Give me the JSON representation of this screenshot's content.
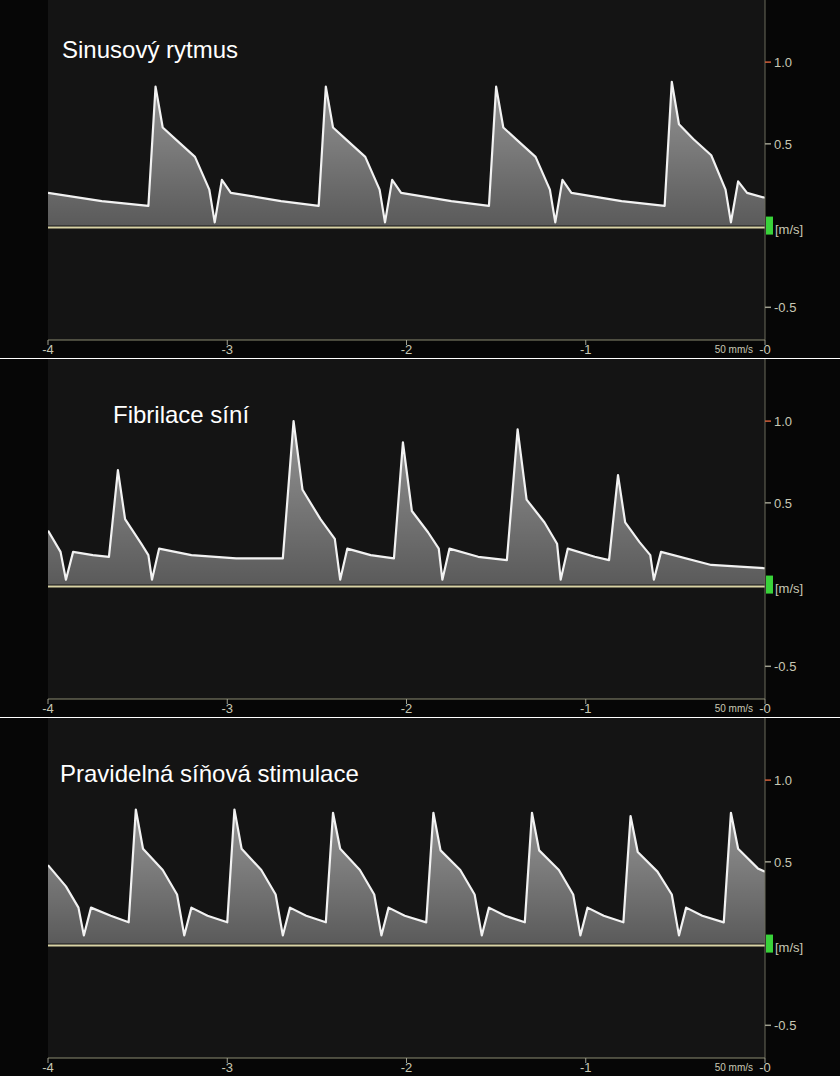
{
  "chart_data": [
    {
      "type": "area",
      "title": "Sinusový rytmus",
      "y_label": "[m/s]",
      "annotation": "50 mm/s",
      "color": "#f2f2f2",
      "xlim": [
        -4,
        0
      ],
      "xticks": [
        -4,
        -3,
        -2,
        -1,
        {
          "value": 0,
          "label": "-0"
        }
      ],
      "ylim": [
        -0.7,
        1.38
      ],
      "yticks": [
        {
          "value": -0.5,
          "label": "-0.5"
        },
        {
          "value": 0.5,
          "label": "0.5"
        },
        {
          "value": 1,
          "label": "1.0"
        }
      ],
      "x": [
        -4,
        -3.7,
        -3.44,
        -3.4,
        -3.36,
        -3.28,
        -3.18,
        -3.1,
        -3.07,
        -3.03,
        -2.98,
        -2.7,
        -2.49,
        -2.45,
        -2.41,
        -2.33,
        -2.23,
        -2.15,
        -2.12,
        -2.08,
        -2.03,
        -1.75,
        -1.54,
        -1.5,
        -1.46,
        -1.38,
        -1.28,
        -1.2,
        -1.17,
        -1.13,
        -1.08,
        -0.8,
        -0.56,
        -0.52,
        -0.48,
        -0.4,
        -0.3,
        -0.22,
        -0.19,
        -0.15,
        -0.1,
        0
      ],
      "values": [
        0.2,
        0.15,
        0.12,
        0.85,
        0.6,
        0.52,
        0.42,
        0.22,
        0.02,
        0.28,
        0.2,
        0.15,
        0.12,
        0.85,
        0.6,
        0.52,
        0.42,
        0.22,
        0.02,
        0.28,
        0.2,
        0.15,
        0.12,
        0.85,
        0.6,
        0.52,
        0.42,
        0.22,
        0.02,
        0.28,
        0.2,
        0.15,
        0.12,
        0.88,
        0.62,
        0.53,
        0.43,
        0.22,
        0.02,
        0.27,
        0.2,
        0.17
      ]
    },
    {
      "type": "area",
      "title": "Fibrilace síní",
      "y_label": "[m/s]",
      "annotation": "50 mm/s",
      "color": "#f2f2f2",
      "xlim": [
        -4,
        0
      ],
      "xticks": [
        -4,
        -3,
        -2,
        -1,
        {
          "value": 0,
          "label": "-0"
        }
      ],
      "ylim": [
        -0.7,
        1.38
      ],
      "yticks": [
        {
          "value": -0.5,
          "label": "-0.5"
        },
        {
          "value": 0.5,
          "label": "0.5"
        },
        {
          "value": 1,
          "label": "1.0"
        }
      ],
      "x": [
        -4,
        -3.93,
        -3.9,
        -3.86,
        -3.75,
        -3.66,
        -3.61,
        -3.57,
        -3.48,
        -3.44,
        -3.42,
        -3.38,
        -3.2,
        -2.95,
        -2.69,
        -2.63,
        -2.58,
        -2.48,
        -2.4,
        -2.37,
        -2.33,
        -2.2,
        -2.07,
        -2.02,
        -1.97,
        -1.88,
        -1.82,
        -1.8,
        -1.76,
        -1.6,
        -1.44,
        -1.38,
        -1.33,
        -1.23,
        -1.16,
        -1.14,
        -1.1,
        -0.95,
        -0.87,
        -0.82,
        -0.78,
        -0.7,
        -0.64,
        -0.62,
        -0.58,
        -0.3,
        0
      ],
      "values": [
        0.33,
        0.2,
        0.03,
        0.2,
        0.18,
        0.17,
        0.7,
        0.4,
        0.25,
        0.18,
        0.03,
        0.22,
        0.18,
        0.16,
        0.16,
        1.0,
        0.58,
        0.4,
        0.28,
        0.03,
        0.22,
        0.18,
        0.16,
        0.87,
        0.45,
        0.32,
        0.22,
        0.03,
        0.22,
        0.17,
        0.15,
        0.95,
        0.52,
        0.38,
        0.25,
        0.03,
        0.22,
        0.17,
        0.15,
        0.67,
        0.38,
        0.26,
        0.18,
        0.03,
        0.2,
        0.12,
        0.1
      ]
    },
    {
      "type": "area",
      "title": "Pravidelná síňová stimulace",
      "y_label": "[m/s]",
      "annotation": "50 mm/s",
      "color": "#f2f2f2",
      "xlim": [
        -4,
        0
      ],
      "xticks": [
        -4,
        -3,
        -2,
        -1,
        {
          "value": 0,
          "label": "-0"
        }
      ],
      "ylim": [
        -0.7,
        1.38
      ],
      "yticks": [
        {
          "value": -0.5,
          "label": "-0.5"
        },
        {
          "value": 0.5,
          "label": "0.5"
        },
        {
          "value": 1,
          "label": "1.0"
        }
      ],
      "x": [
        -4,
        -3.9,
        -3.83,
        -3.8,
        -3.76,
        -3.65,
        -3.55,
        -3.51,
        -3.47,
        -3.36,
        -3.28,
        -3.24,
        -3.2,
        -3.11,
        -3.0,
        -2.96,
        -2.92,
        -2.81,
        -2.73,
        -2.69,
        -2.65,
        -2.56,
        -2.45,
        -2.41,
        -2.37,
        -2.26,
        -2.18,
        -2.14,
        -2.1,
        -2.01,
        -1.89,
        -1.85,
        -1.81,
        -1.7,
        -1.62,
        -1.58,
        -1.54,
        -1.45,
        -1.34,
        -1.3,
        -1.26,
        -1.15,
        -1.07,
        -1.03,
        -0.99,
        -0.9,
        -0.79,
        -0.75,
        -0.71,
        -0.6,
        -0.52,
        -0.48,
        -0.44,
        -0.35,
        -0.23,
        -0.19,
        -0.15,
        -0.04,
        0
      ],
      "values": [
        0.48,
        0.35,
        0.22,
        0.05,
        0.22,
        0.17,
        0.13,
        0.82,
        0.58,
        0.45,
        0.3,
        0.05,
        0.22,
        0.17,
        0.13,
        0.82,
        0.58,
        0.45,
        0.3,
        0.05,
        0.22,
        0.17,
        0.13,
        0.8,
        0.58,
        0.45,
        0.3,
        0.05,
        0.22,
        0.17,
        0.13,
        0.8,
        0.57,
        0.45,
        0.3,
        0.05,
        0.22,
        0.17,
        0.13,
        0.8,
        0.57,
        0.45,
        0.3,
        0.05,
        0.22,
        0.17,
        0.13,
        0.78,
        0.56,
        0.44,
        0.3,
        0.05,
        0.22,
        0.17,
        0.13,
        0.8,
        0.58,
        0.46,
        0.44
      ]
    }
  ]
}
